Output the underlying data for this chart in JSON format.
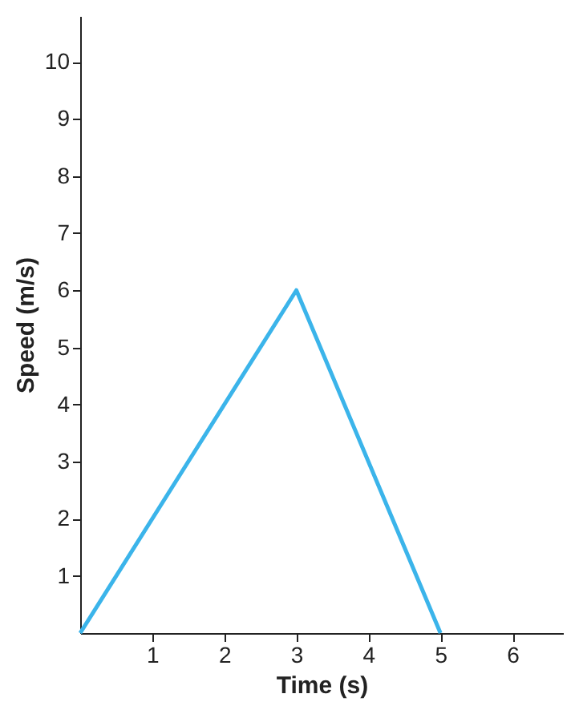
{
  "chart_data": {
    "type": "line",
    "xlabel": "Time (s)",
    "ylabel": "Speed (m/s)",
    "x": [
      0,
      3,
      5
    ],
    "series": [
      {
        "color": "#3bb4ea",
        "values": [
          0,
          6,
          0
        ]
      }
    ],
    "xlim": [
      0,
      6.7
    ],
    "ylim": [
      0,
      10.8
    ],
    "xticks": [
      1,
      2,
      3,
      4,
      5,
      6
    ],
    "yticks": [
      1,
      2,
      3,
      4,
      5,
      6,
      7,
      8,
      9,
      10
    ],
    "grid": false,
    "legend": false,
    "marker": "none",
    "line_style": "solid"
  }
}
